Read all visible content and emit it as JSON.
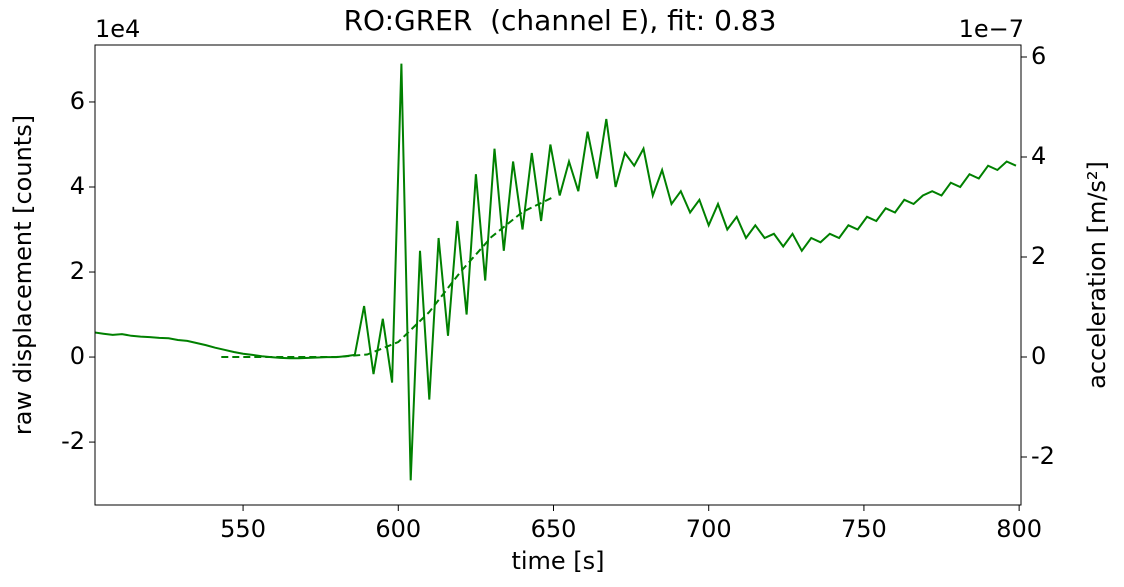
{
  "chart_data": {
    "type": "line",
    "title": "RO:GRER  (channel E), fit: 0.83",
    "xlabel": "time [s]",
    "ylabel": "raw displacement [counts]",
    "y2label": "acceleration [m/s²]",
    "y_offset_label": "1e4",
    "y2_offset_label": "1e−7",
    "xlim": [
      502.3,
      800.6
    ],
    "xticks": [
      550,
      600,
      650,
      700,
      750,
      800
    ],
    "ylim": [
      -3.48,
      7.34
    ],
    "yticks": [
      -2,
      0,
      2,
      4,
      6
    ],
    "y2lim": [
      -2.96,
      6.24
    ],
    "y2ticks": [
      -2,
      0,
      2,
      4,
      6
    ],
    "series": [
      {
        "color": "#008000",
        "dash": false,
        "x": [
          502,
          505,
          508,
          511,
          514,
          517,
          520,
          523,
          526,
          529,
          532,
          535,
          538,
          541,
          544,
          547,
          550,
          553,
          556,
          559,
          562,
          565,
          568,
          571,
          574,
          577,
          580,
          583,
          586,
          589,
          592,
          595,
          598,
          601,
          604,
          607,
          610,
          613,
          616,
          619,
          622,
          625,
          628,
          631,
          634,
          637,
          640,
          643,
          646,
          649,
          652,
          655,
          658,
          661,
          664,
          667,
          670,
          673,
          676,
          679,
          682,
          685,
          688,
          691,
          694,
          697,
          700,
          703,
          706,
          709,
          712,
          715,
          718,
          721,
          724,
          727,
          730,
          733,
          736,
          739,
          742,
          745,
          748,
          751,
          754,
          757,
          760,
          763,
          766,
          769,
          772,
          775,
          778,
          781,
          784,
          787,
          790,
          793,
          796,
          799
        ],
        "values": [
          0.58,
          0.55,
          0.52,
          0.54,
          0.5,
          0.48,
          0.47,
          0.45,
          0.44,
          0.4,
          0.38,
          0.33,
          0.28,
          0.22,
          0.17,
          0.12,
          0.08,
          0.05,
          0.02,
          0.0,
          -0.02,
          -0.03,
          -0.03,
          -0.02,
          -0.01,
          0.0,
          0.0,
          0.02,
          0.05,
          1.2,
          -0.4,
          0.9,
          -0.6,
          6.9,
          -2.9,
          2.5,
          -1.0,
          2.8,
          0.5,
          3.2,
          1.0,
          4.3,
          1.8,
          4.9,
          2.5,
          4.6,
          3.0,
          4.8,
          3.2,
          5.0,
          3.8,
          4.6,
          3.9,
          5.3,
          4.2,
          5.6,
          4.0,
          4.8,
          4.5,
          4.9,
          3.8,
          4.4,
          3.6,
          3.9,
          3.4,
          3.7,
          3.1,
          3.6,
          3.0,
          3.3,
          2.8,
          3.1,
          2.8,
          2.9,
          2.6,
          2.9,
          2.5,
          2.8,
          2.7,
          2.9,
          2.8,
          3.1,
          3.0,
          3.3,
          3.2,
          3.5,
          3.4,
          3.7,
          3.6,
          3.8,
          3.9,
          3.8,
          4.1,
          4.0,
          4.3,
          4.2,
          4.5,
          4.4,
          4.6,
          4.5
        ]
      },
      {
        "color": "#008000",
        "dash": true,
        "axis": "y2",
        "x": [
          543,
          560,
          580,
          590,
          600,
          610,
          620,
          630,
          640,
          650
        ],
        "values": [
          0,
          0,
          0,
          0.05,
          0.3,
          0.9,
          1.7,
          2.4,
          2.9,
          3.2
        ]
      }
    ]
  }
}
